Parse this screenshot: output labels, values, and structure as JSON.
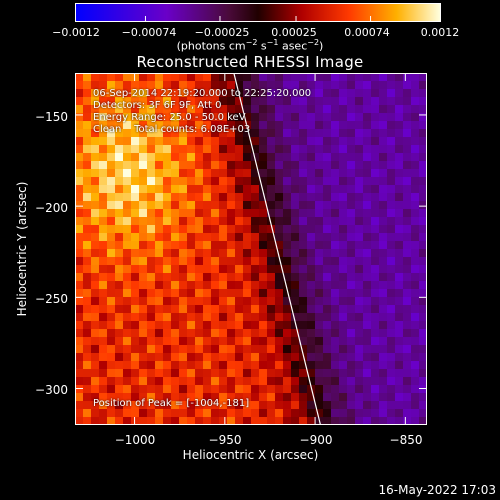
{
  "chart_data": {
    "type": "heatmap",
    "title": "Reconstructed RHESSI Image",
    "xlabel": "Heliocentric X (arcsec)",
    "ylabel": "Heliocentric Y (arcsec)",
    "xlim": [
      -1033,
      -838
    ],
    "ylim": [
      -320,
      -127
    ],
    "xticks": [
      {
        "value": -1000,
        "label": "−1000"
      },
      {
        "value": -950,
        "label": "−950"
      },
      {
        "value": -900,
        "label": "−900"
      },
      {
        "value": -850,
        "label": "−850"
      }
    ],
    "yticks": [
      {
        "value": -150,
        "label": "−150"
      },
      {
        "value": -200,
        "label": "−200"
      },
      {
        "value": -250,
        "label": "−250"
      },
      {
        "value": -300,
        "label": "−300"
      }
    ],
    "colorbar": {
      "range": [
        -0.0012,
        0.0012
      ],
      "ticks": [
        {
          "value": -0.0012,
          "label": "−0.0012"
        },
        {
          "value": -0.00074,
          "label": "−0.00074"
        },
        {
          "value": -0.00025,
          "label": "−0.00025"
        },
        {
          "value": 0.00025,
          "label": "0.00025"
        },
        {
          "value": 0.00074,
          "label": "0.00074"
        },
        {
          "value": 0.0012,
          "label": "0.0012"
        }
      ],
      "unit_prefix": "(photons cm",
      "unit_exp1": "−2",
      "unit_mid": " s",
      "unit_exp2": "−1",
      "unit_mid2": " asec",
      "unit_exp3": "−2",
      "unit_suffix": ")"
    },
    "annotations": {
      "line1": "06-Sep-2014 22:19:20.000 to 22:25:20.000",
      "line2": "Detectors: 3F 6F 9F, Att 0",
      "line3": "Energy Range: 25.0 - 50.0 keV",
      "line4": "Clean    Total counts: 6.08E+03",
      "peak": "Position of Peak = [-1004,-181]"
    },
    "limb_line": [
      {
        "x": -945,
        "y": -127
      },
      {
        "x": -897,
        "y": -320
      }
    ],
    "peak_position": {
      "x": -1004,
      "y": -181
    }
  },
  "footer": "16-May-2022 17:03"
}
